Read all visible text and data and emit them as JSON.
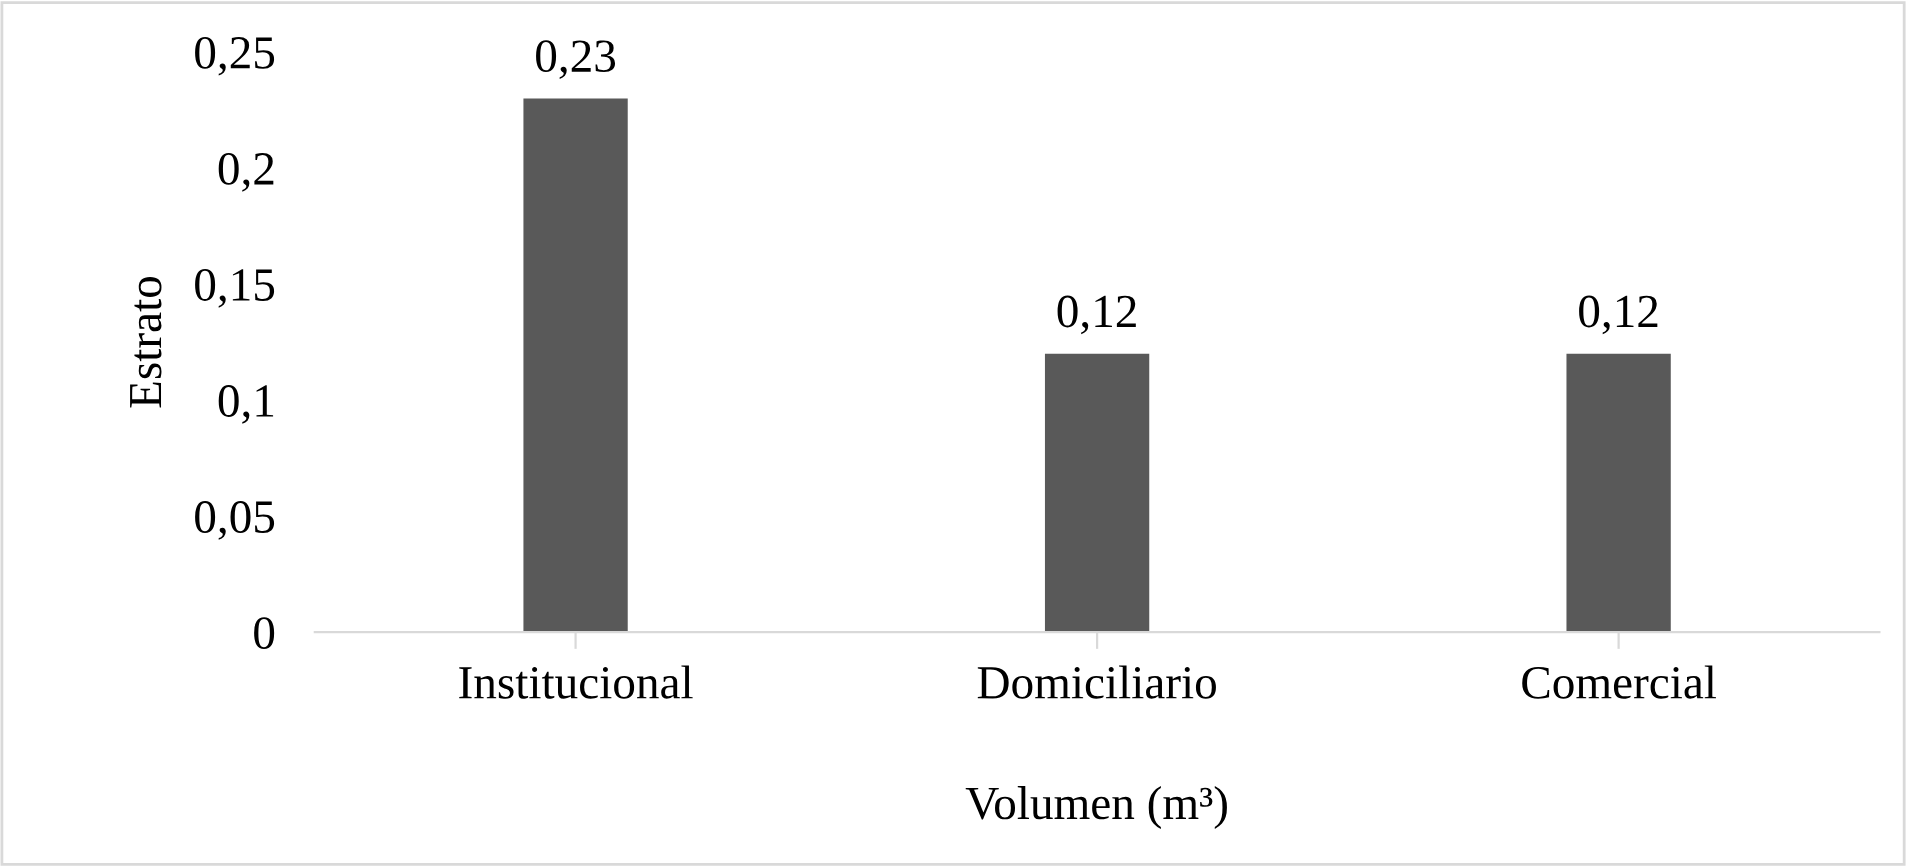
{
  "chart_data": {
    "type": "bar",
    "xlabel": "Volumen (m³)",
    "ylabel": "Estrato",
    "categories": [
      "Institucional",
      "Domiciliario",
      "Comercial"
    ],
    "values": [
      0.23,
      0.12,
      0.12
    ],
    "color": "#595959",
    "value_labels": [
      "0,23",
      "0,12",
      "0,12"
    ],
    "ylim": [
      0,
      0.25
    ],
    "yticks": [
      0,
      {
        "value": 0.05,
        "label": "0,05"
      },
      {
        "value": 0.1,
        "label": "0,1"
      },
      {
        "value": 0.15,
        "label": "0,15"
      },
      {
        "value": 0.2,
        "label": "0,2"
      },
      {
        "value": 0.25,
        "label": "0,25"
      }
    ],
    "grid": false,
    "legend": false
  }
}
